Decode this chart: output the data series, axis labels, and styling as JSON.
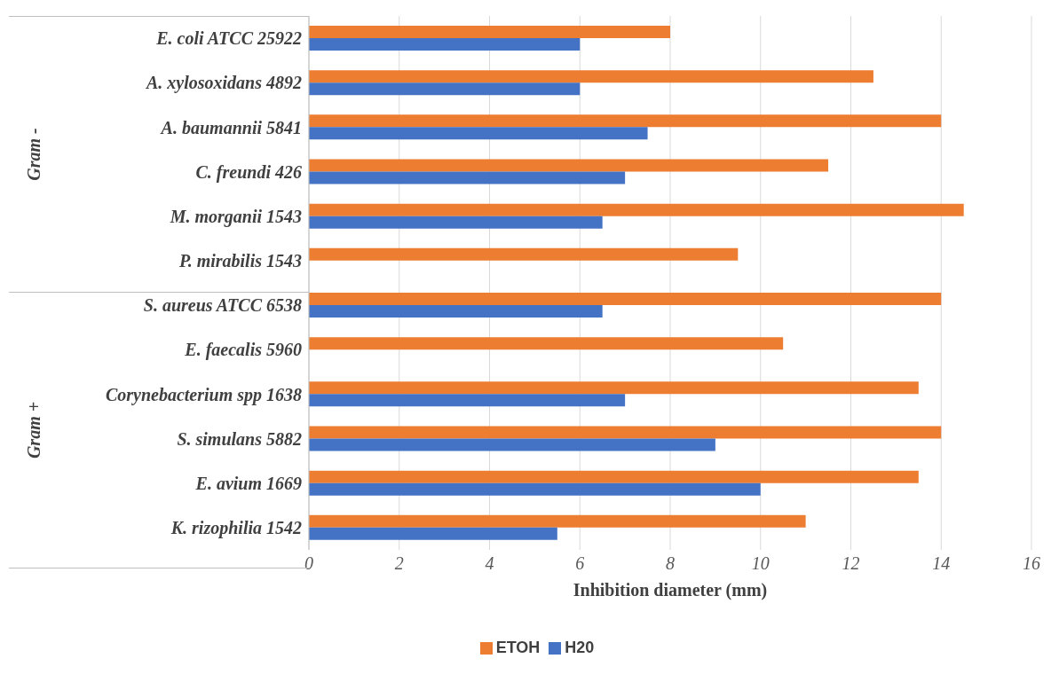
{
  "chart_data": {
    "type": "bar",
    "orientation": "horizontal",
    "xlabel": "Inhibition diameter (mm)",
    "categories": [
      "E. coli ATCC 25922",
      "A. xylosoxidans 4892",
      "A. baumannii 5841",
      "C. freundi 426",
      "M. morganii 1543",
      "P. mirabilis 1543",
      "S. aureus ATCC 6538",
      "E. faecalis 5960",
      "Corynebacterium spp 1638",
      "S. simulans 5882",
      "E. avium 1669",
      "K. rizophilia 1542"
    ],
    "series": [
      {
        "name": "ETOH",
        "color": "#ed7d31",
        "values": [
          8,
          12.5,
          14,
          11.5,
          14.5,
          9.5,
          14,
          10.5,
          13.5,
          14,
          13.5,
          11
        ]
      },
      {
        "name": "H20",
        "color": "#4472c4",
        "values": [
          6,
          6,
          7.5,
          7,
          6.5,
          null,
          6.5,
          null,
          7,
          9,
          10,
          5.5
        ]
      }
    ],
    "xlim": [
      0,
      16
    ],
    "xticks": [
      0,
      2,
      4,
      6,
      8,
      10,
      12,
      14,
      16
    ],
    "grid": "x",
    "legend": "bottom",
    "annotations": [
      "Gram -",
      "Gram +"
    ]
  }
}
